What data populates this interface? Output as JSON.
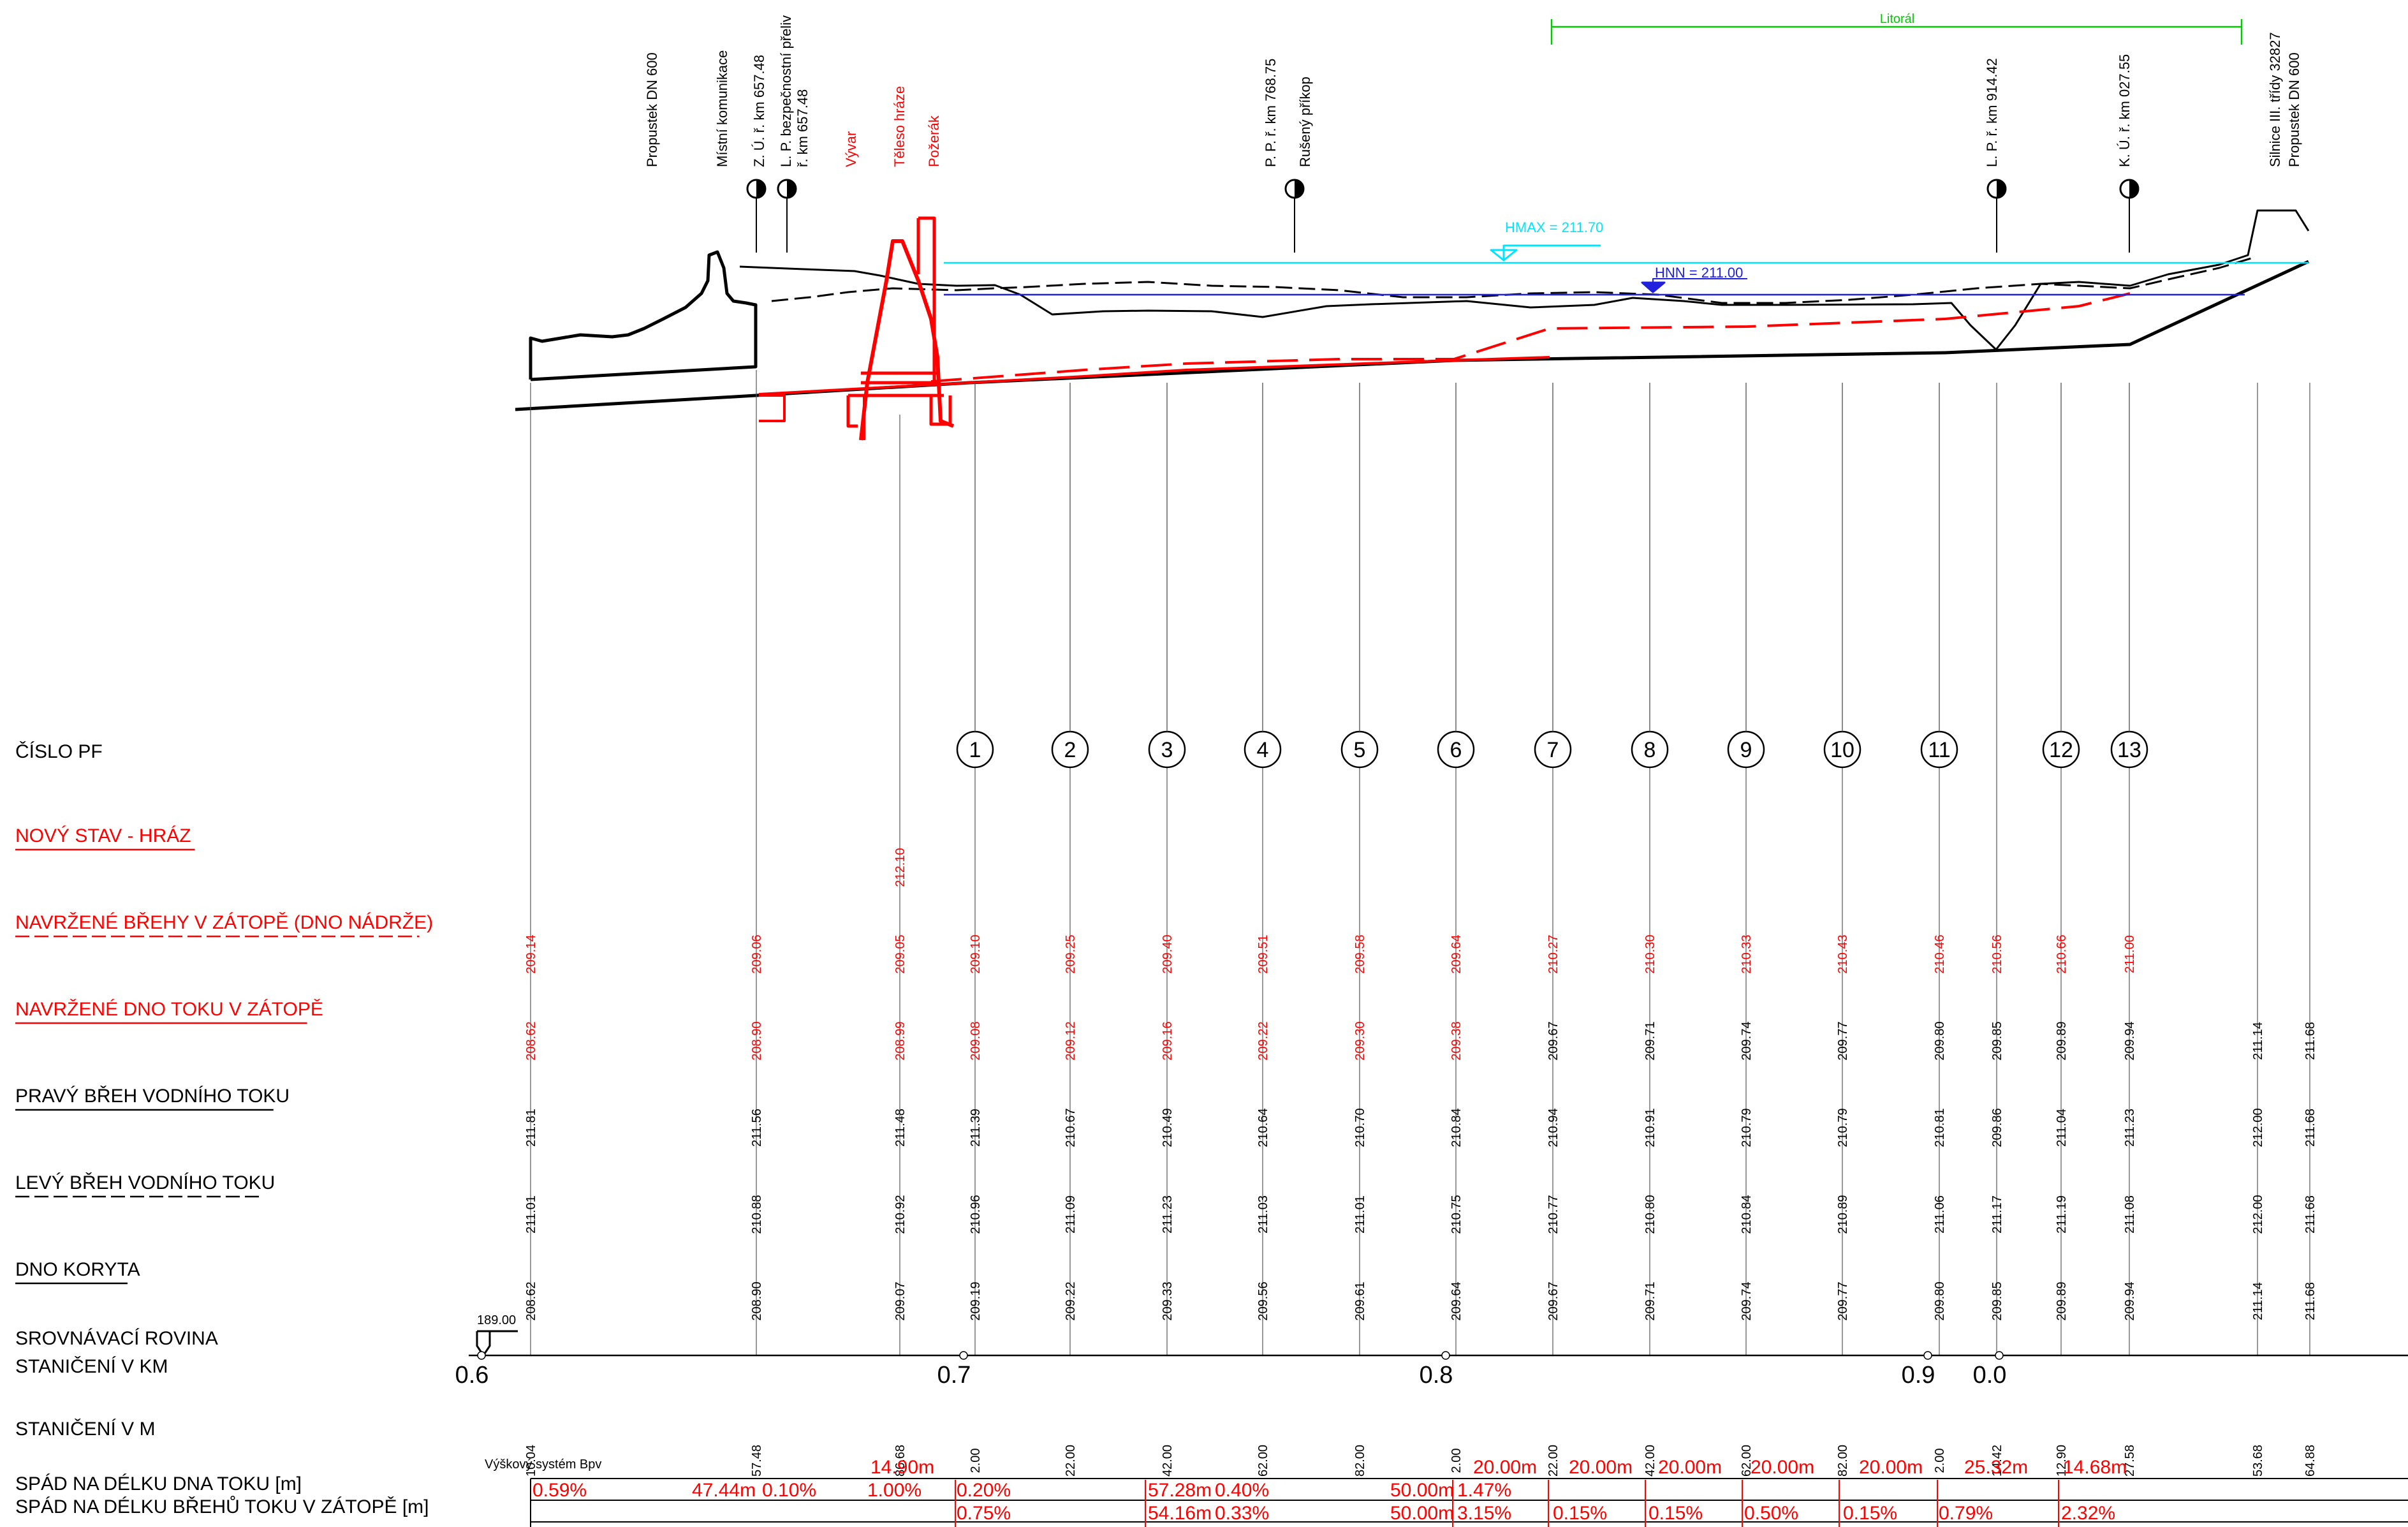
{
  "labels": {
    "top": [
      "Propustek DN 600",
      "Místní komunikace",
      "Z. Ú. ř. km 657.48",
      "L. P. bezpečnostní přeliv",
      "ř. km 657.48",
      "Vývar",
      "Těleso hráze",
      "Požerák",
      "P. P. ř. km 768.75",
      "Rušený příkop",
      "L. P. ř. km 914.42",
      "K. Ú. ř. km 027.55",
      "Silnice III. třídy 32827",
      "Propustek DN 600"
    ],
    "litoral": "Litorál",
    "hmax": "HMAX = 211.70",
    "hnn": "HNN = 211.00",
    "datum": "189.00",
    "height_system": "Výškový systém Bpv"
  },
  "rows": [
    {
      "key": "cislo_pf",
      "label": "ČÍSLO PF",
      "style": "black-plain"
    },
    {
      "key": "novy_stav",
      "label": "NOVÝ STAV - HRÁZ",
      "style": "red-solid"
    },
    {
      "key": "navrzene_brehy",
      "label": "NAVRŽENÉ BŘEHY V ZÁTOPĚ (DNO NÁDRŽE)",
      "style": "red-dashed"
    },
    {
      "key": "navrzene_dno",
      "label": "NAVRŽENÉ DNO TOKU V ZÁTOPĚ",
      "style": "red-solid"
    },
    {
      "key": "pravy_breh",
      "label": "PRAVÝ BŘEH VODNÍHO TOKU",
      "style": "black-solid"
    },
    {
      "key": "levy_breh",
      "label": "LEVÝ BŘEH VODNÍHO TOKU",
      "style": "black-dashed"
    },
    {
      "key": "dno_koryta",
      "label": "DNO KORYTA",
      "style": "black-solid"
    },
    {
      "key": "srovnavaci",
      "label": "SROVNÁVACÍ ROVINA",
      "style": "black-plain"
    },
    {
      "key": "km",
      "label": "STANIČENÍ V KM",
      "style": "black-plain"
    },
    {
      "key": "m",
      "label": "STANIČENÍ V M",
      "style": "black-plain"
    },
    {
      "key": "spad_dno",
      "label": "SPÁD NA DÉLKU DNA TOKU [m]",
      "style": "black-plain"
    },
    {
      "key": "spad_brehy",
      "label": "SPÁD NA DÉLKU BŘEHŮ TOKU V ZÁTOPĚ [m]",
      "style": "black-plain"
    }
  ],
  "profiles": [
    "1",
    "2",
    "3",
    "4",
    "5",
    "6",
    "7",
    "8",
    "9",
    "10",
    "11",
    "12",
    "13"
  ],
  "novy_stav_value": "212.10",
  "columns": [
    {
      "brehy": "209.14",
      "brehy_red": true,
      "dno_nav": "208.62",
      "dno_nav_red": true,
      "pravy": "211.81",
      "levy": "211.01",
      "dno": "208.62",
      "stat_m": "10.04"
    },
    {
      "brehy": "209.06",
      "brehy_red": true,
      "dno_nav": "208.90",
      "dno_nav_red": true,
      "pravy": "211.56",
      "levy": "210.88",
      "dno": "208.90",
      "stat_m": "57.48"
    },
    {
      "brehy": "209.05",
      "brehy_red": true,
      "dno_nav": "208.99",
      "dno_nav_red": true,
      "pravy": "211.48",
      "levy": "210.92",
      "dno": "209.07",
      "stat_m": "86.68"
    },
    {
      "brehy": "209.10",
      "brehy_red": true,
      "dno_nav": "209.08",
      "dno_nav_red": true,
      "pravy": "211.39",
      "levy": "210.96",
      "dno": "209.19",
      "stat_m": "2.00"
    },
    {
      "brehy": "209.25",
      "brehy_red": true,
      "dno_nav": "209.12",
      "dno_nav_red": true,
      "pravy": "210.67",
      "levy": "211.09",
      "dno": "209.22",
      "stat_m": "22.00"
    },
    {
      "brehy": "209.40",
      "brehy_red": true,
      "dno_nav": "209.16",
      "dno_nav_red": true,
      "pravy": "210.49",
      "levy": "211.23",
      "dno": "209.33",
      "stat_m": "42.00"
    },
    {
      "brehy": "209.51",
      "brehy_red": true,
      "dno_nav": "209.22",
      "dno_nav_red": true,
      "pravy": "210.64",
      "levy": "211.03",
      "dno": "209.56",
      "stat_m": "62.00"
    },
    {
      "brehy": "209.58",
      "brehy_red": true,
      "dno_nav": "209.30",
      "dno_nav_red": true,
      "pravy": "210.70",
      "levy": "211.01",
      "dno": "209.61",
      "stat_m": "82.00"
    },
    {
      "brehy": "209.64",
      "brehy_red": true,
      "dno_nav": "209.38",
      "dno_nav_red": true,
      "pravy": "210.84",
      "levy": "210.75",
      "dno": "209.64",
      "stat_m": "2.00"
    },
    {
      "brehy": "210.27",
      "brehy_red": true,
      "dno_nav": "209.67",
      "dno_nav_red": false,
      "pravy": "210.94",
      "levy": "210.77",
      "dno": "209.67",
      "stat_m": "22.00"
    },
    {
      "brehy": "210.30",
      "brehy_red": true,
      "dno_nav": "209.71",
      "dno_nav_red": false,
      "pravy": "210.91",
      "levy": "210.80",
      "dno": "209.71",
      "stat_m": "42.00"
    },
    {
      "brehy": "210.33",
      "brehy_red": true,
      "dno_nav": "209.74",
      "dno_nav_red": false,
      "pravy": "210.79",
      "levy": "210.84",
      "dno": "209.74",
      "stat_m": "62.00"
    },
    {
      "brehy": "210.43",
      "brehy_red": true,
      "dno_nav": "209.77",
      "dno_nav_red": false,
      "pravy": "210.79",
      "levy": "210.89",
      "dno": "209.77",
      "stat_m": "82.00"
    },
    {
      "brehy": "210.46",
      "brehy_red": true,
      "dno_nav": "209.80",
      "dno_nav_red": false,
      "pravy": "210.81",
      "levy": "211.06",
      "dno": "209.80",
      "stat_m": "2.00"
    },
    {
      "brehy": "210.56",
      "brehy_red": true,
      "dno_nav": "209.85",
      "dno_nav_red": false,
      "pravy": "209.86",
      "levy": "211.17",
      "dno": "209.85",
      "stat_m": "14.42"
    },
    {
      "brehy": "210.66",
      "brehy_red": true,
      "dno_nav": "209.89",
      "dno_nav_red": false,
      "pravy": "211.04",
      "levy": "211.19",
      "dno": "209.89",
      "stat_m": "12.90"
    },
    {
      "brehy": "211.00",
      "brehy_red": true,
      "dno_nav": "209.94",
      "dno_nav_red": false,
      "pravy": "211.23",
      "levy": "211.08",
      "dno": "209.94",
      "stat_m": "27.58"
    },
    {
      "brehy": "",
      "brehy_red": false,
      "dno_nav": "211.14",
      "dno_nav_red": false,
      "pravy": "212.00",
      "levy": "212.00",
      "dno": "211.14",
      "stat_m": "53.68"
    },
    {
      "brehy": "",
      "brehy_red": false,
      "dno_nav": "211.68",
      "dno_nav_red": false,
      "pravy": "211.68",
      "levy": "211.68",
      "dno": "211.68",
      "stat_m": "64.88"
    }
  ],
  "km_labels": [
    "0.6",
    "0.7",
    "0.8",
    "0.9",
    "0.0"
  ],
  "spad_dno_items": [
    "0.59%",
    "47.44m",
    "0.10%",
    "14.90m",
    "1.00%",
    "0.20%",
    "57.28m",
    "0.40%",
    "50.00m",
    "1.47%",
    "20.00m",
    "20.00m",
    "20.00m",
    "20.00m",
    "20.00m",
    "25.32m",
    "14.68m"
  ],
  "spad_brehy_items": [
    "0.75%",
    "54.16m",
    "0.33%",
    "50.00m",
    "3.15%",
    "0.15%",
    "0.15%",
    "0.50%",
    "0.15%",
    "0.79%",
    "2.32%"
  ],
  "colors": {
    "black": "#000000",
    "red": "#ff0000",
    "cyan": "#00e5ff",
    "blue": "#0000ee",
    "green": "#00cc00",
    "grey": "#666666"
  }
}
